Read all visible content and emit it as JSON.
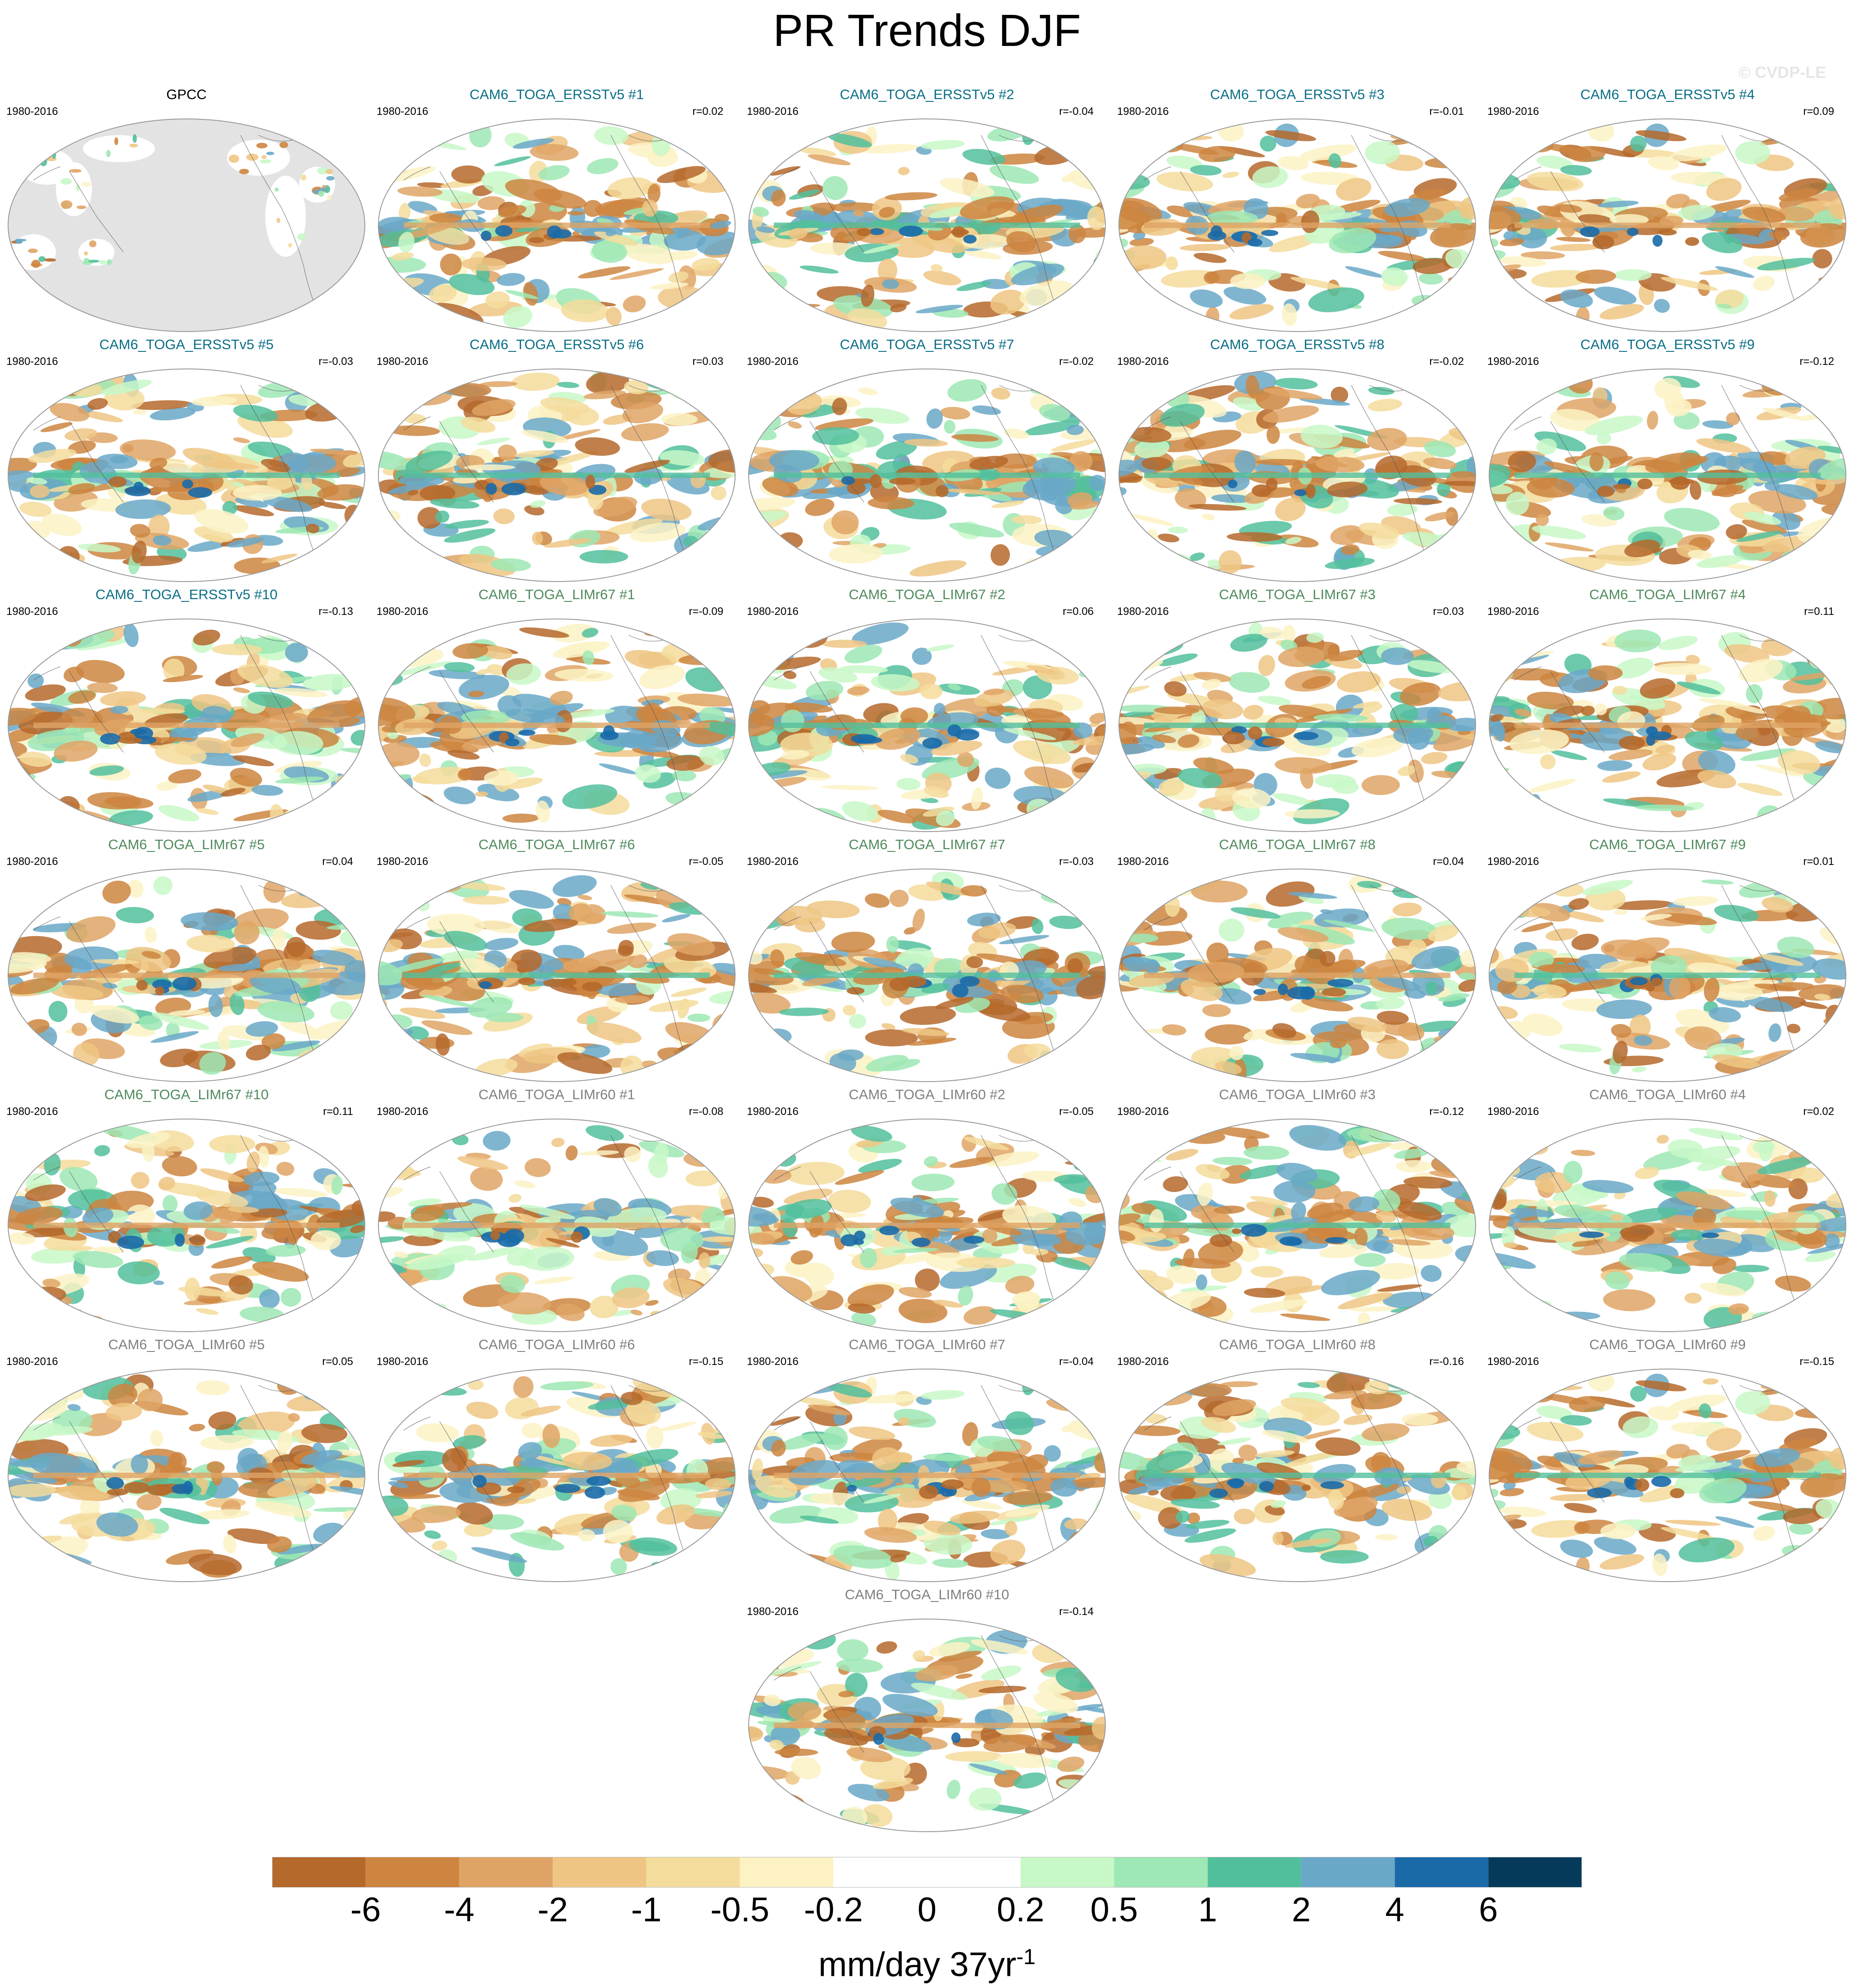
{
  "figure": {
    "title": "PR Trends DJF",
    "watermark": "© CVDP-LE",
    "units_main": "mm/day 37yr",
    "units_sup": "-1"
  },
  "colors": {
    "ersst_title": "#0a6e86",
    "limr67_title": "#4f8a5c",
    "limr60_title": "#808080",
    "obs_title": "#000000",
    "land_mask": "#e3e3e3",
    "ocean_background": "#ffffff"
  },
  "chart_data": {
    "type": "heatmap",
    "description_of_fields": "global maps of DJF precipitation trend",
    "panels": [
      {
        "title": "GPCC",
        "years": "1980-2016",
        "r": "",
        "group": "obs"
      },
      {
        "title": "CAM6_TOGA_ERSSTv5 #1",
        "years": "1980-2016",
        "r": "r=0.02",
        "group": "ersst"
      },
      {
        "title": "CAM6_TOGA_ERSSTv5 #2",
        "years": "1980-2016",
        "r": "r=-0.04",
        "group": "ersst"
      },
      {
        "title": "CAM6_TOGA_ERSSTv5 #3",
        "years": "1980-2016",
        "r": "r=-0.01",
        "group": "ersst"
      },
      {
        "title": "CAM6_TOGA_ERSSTv5 #4",
        "years": "1980-2016",
        "r": "r=0.09",
        "group": "ersst"
      },
      {
        "title": "CAM6_TOGA_ERSSTv5 #5",
        "years": "1980-2016",
        "r": "r=-0.03",
        "group": "ersst"
      },
      {
        "title": "CAM6_TOGA_ERSSTv5 #6",
        "years": "1980-2016",
        "r": "r=0.03",
        "group": "ersst"
      },
      {
        "title": "CAM6_TOGA_ERSSTv5 #7",
        "years": "1980-2016",
        "r": "r=-0.02",
        "group": "ersst"
      },
      {
        "title": "CAM6_TOGA_ERSSTv5 #8",
        "years": "1980-2016",
        "r": "r=-0.02",
        "group": "ersst"
      },
      {
        "title": "CAM6_TOGA_ERSSTv5 #9",
        "years": "1980-2016",
        "r": "r=-0.12",
        "group": "ersst"
      },
      {
        "title": "CAM6_TOGA_ERSSTv5 #10",
        "years": "1980-2016",
        "r": "r=-0.13",
        "group": "ersst"
      },
      {
        "title": "CAM6_TOGA_LIMr67 #1",
        "years": "1980-2016",
        "r": "r=-0.09",
        "group": "limr67"
      },
      {
        "title": "CAM6_TOGA_LIMr67 #2",
        "years": "1980-2016",
        "r": "r=0.06",
        "group": "limr67"
      },
      {
        "title": "CAM6_TOGA_LIMr67 #3",
        "years": "1980-2016",
        "r": "r=0.03",
        "group": "limr67"
      },
      {
        "title": "CAM6_TOGA_LIMr67 #4",
        "years": "1980-2016",
        "r": "r=0.11",
        "group": "limr67"
      },
      {
        "title": "CAM6_TOGA_LIMr67 #5",
        "years": "1980-2016",
        "r": "r=0.04",
        "group": "limr67"
      },
      {
        "title": "CAM6_TOGA_LIMr67 #6",
        "years": "1980-2016",
        "r": "r=-0.05",
        "group": "limr67"
      },
      {
        "title": "CAM6_TOGA_LIMr67 #7",
        "years": "1980-2016",
        "r": "r=-0.03",
        "group": "limr67"
      },
      {
        "title": "CAM6_TOGA_LIMr67 #8",
        "years": "1980-2016",
        "r": "r=0.04",
        "group": "limr67"
      },
      {
        "title": "CAM6_TOGA_LIMr67 #9",
        "years": "1980-2016",
        "r": "r=0.01",
        "group": "limr67"
      },
      {
        "title": "CAM6_TOGA_LIMr67 #10",
        "years": "1980-2016",
        "r": "r=0.11",
        "group": "limr67"
      },
      {
        "title": "CAM6_TOGA_LIMr60 #1",
        "years": "1980-2016",
        "r": "r=-0.08",
        "group": "limr60"
      },
      {
        "title": "CAM6_TOGA_LIMr60 #2",
        "years": "1980-2016",
        "r": "r=-0.05",
        "group": "limr60"
      },
      {
        "title": "CAM6_TOGA_LIMr60 #3",
        "years": "1980-2016",
        "r": "r=-0.12",
        "group": "limr60"
      },
      {
        "title": "CAM6_TOGA_LIMr60 #4",
        "years": "1980-2016",
        "r": "r=0.02",
        "group": "limr60"
      },
      {
        "title": "CAM6_TOGA_LIMr60 #5",
        "years": "1980-2016",
        "r": "r=0.05",
        "group": "limr60"
      },
      {
        "title": "CAM6_TOGA_LIMr60 #6",
        "years": "1980-2016",
        "r": "r=-0.15",
        "group": "limr60"
      },
      {
        "title": "CAM6_TOGA_LIMr60 #7",
        "years": "1980-2016",
        "r": "r=-0.04",
        "group": "limr60"
      },
      {
        "title": "CAM6_TOGA_LIMr60 #8",
        "years": "1980-2016",
        "r": "r=-0.16",
        "group": "limr60"
      },
      {
        "title": "CAM6_TOGA_LIMr60 #9",
        "years": "1980-2016",
        "r": "r=-0.15",
        "group": "limr60"
      },
      {
        "title": "CAM6_TOGA_LIMr60 #10",
        "years": "1980-2016",
        "r": "r=-0.14",
        "group": "limr60"
      }
    ],
    "colorbar": {
      "ticks": [
        "-6",
        "-4",
        "-2",
        "-1",
        "-0.5",
        "-0.2",
        "0",
        "0.2",
        "0.5",
        "1",
        "2",
        "4",
        "6"
      ],
      "colors": [
        "#b5692b",
        "#cd853f",
        "#dfa465",
        "#efc584",
        "#f4dc9c",
        "#fcf2c4",
        "#ffffff",
        "#ffffff",
        "#c8f8c8",
        "#9de8b4",
        "#52bf9c",
        "#6aa8c8",
        "#1a6aa8",
        "#053a5a"
      ]
    }
  }
}
